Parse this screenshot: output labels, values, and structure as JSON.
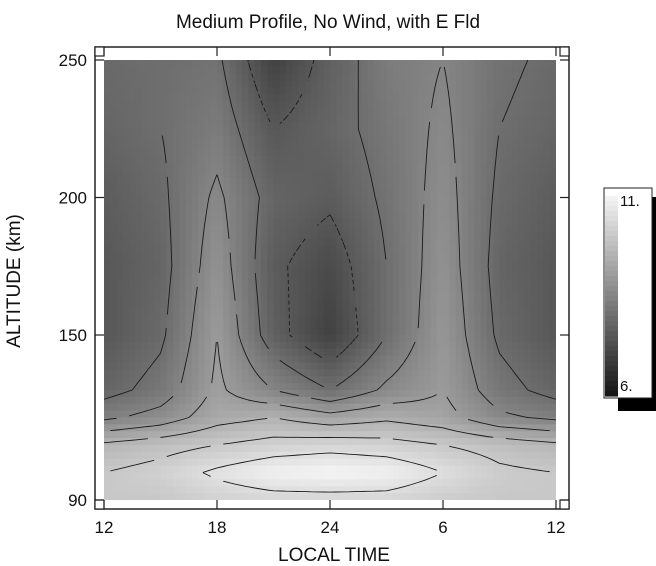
{
  "chart_data": {
    "type": "heatmap",
    "title": "Medium Profile, No Wind, with E Fld",
    "xlabel": "LOCAL TIME",
    "ylabel": "ALTITUDE (km)",
    "x_ticks": [
      "12",
      "18",
      "24",
      "6",
      "12"
    ],
    "y_ticks": [
      "90",
      "150",
      "200",
      "250"
    ],
    "ylim": [
      90,
      250
    ],
    "colorbar": {
      "min_label": "6.",
      "max_label": "11.",
      "range": [
        6,
        11
      ],
      "colormap": "grayscale"
    },
    "contour_lines": true,
    "x": [
      "12",
      "15",
      "18",
      "21",
      "24",
      "3",
      "6",
      "9",
      "12"
    ],
    "y": [
      90,
      100,
      110,
      120,
      130,
      150,
      175,
      200,
      225,
      250
    ],
    "z": [
      [
        10.0,
        10.0,
        10.2,
        10.3,
        10.3,
        10.3,
        10.1,
        10.0,
        10.0
      ],
      [
        10.0,
        10.2,
        10.6,
        10.9,
        11.0,
        10.9,
        10.5,
        10.1,
        10.0
      ],
      [
        9.6,
        9.8,
        10.0,
        10.2,
        10.3,
        10.2,
        10.0,
        9.8,
        9.6
      ],
      [
        8.4,
        8.7,
        9.3,
        9.5,
        9.2,
        9.4,
        9.2,
        8.6,
        8.4
      ],
      [
        7.8,
        8.2,
        9.1,
        8.5,
        8.0,
        8.6,
        9.0,
        8.2,
        7.8
      ],
      [
        7.5,
        7.9,
        9.0,
        7.7,
        7.0,
        8.0,
        8.9,
        7.9,
        7.5
      ],
      [
        7.5,
        7.8,
        8.8,
        7.6,
        7.2,
        8.0,
        8.8,
        7.8,
        7.5
      ],
      [
        7.6,
        7.9,
        8.6,
        7.8,
        7.6,
        8.1,
        8.7,
        7.9,
        7.6
      ],
      [
        7.8,
        8.0,
        8.3,
        7.5,
        7.8,
        8.2,
        8.6,
        8.0,
        7.8
      ],
      [
        7.9,
        8.0,
        8.1,
        7.0,
        7.7,
        8.3,
        8.5,
        8.1,
        7.9
      ]
    ]
  }
}
